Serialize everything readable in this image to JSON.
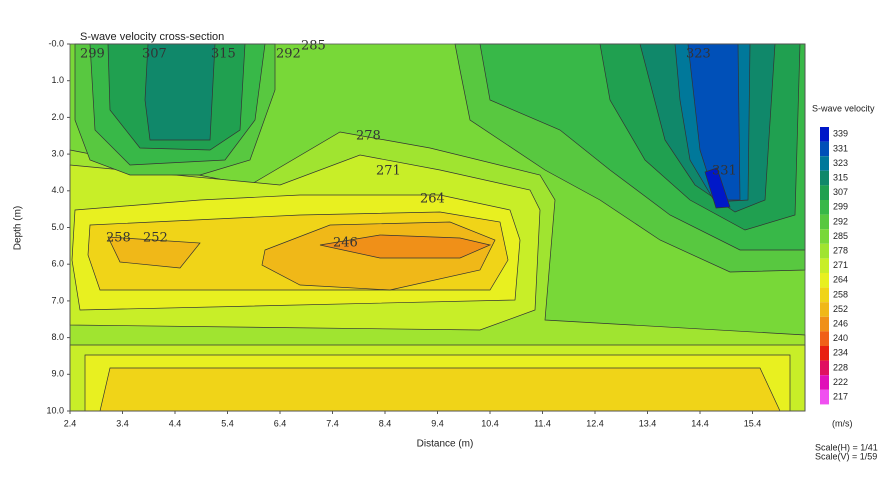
{
  "chart_data": {
    "type": "contour",
    "title": "S-wave velocity cross-section",
    "x_label": "Distance (m)",
    "y_label": "Depth (m)",
    "xlim": [
      2.4,
      16.4
    ],
    "xticks": [
      2.4,
      3.4,
      4.4,
      5.4,
      6.4,
      7.4,
      8.4,
      9.4,
      10.4,
      11.4,
      12.4,
      13.4,
      14.4,
      15.4
    ],
    "ylim": [
      0,
      10
    ],
    "y_inverted": true,
    "yticks": [
      {
        "value": 0,
        "label": "-0.0"
      },
      {
        "value": 1,
        "label": "1.0"
      },
      {
        "value": 2,
        "label": "2.0"
      },
      {
        "value": 3,
        "label": "3.0"
      },
      {
        "value": 4,
        "label": "4.0"
      },
      {
        "value": 5,
        "label": "5.0"
      },
      {
        "value": 6,
        "label": "6.0"
      },
      {
        "value": 7,
        "label": "7.0"
      },
      {
        "value": 8,
        "label": "8.0"
      },
      {
        "value": 9,
        "label": "9.0"
      },
      {
        "value": 10,
        "label": "10.0"
      }
    ],
    "grid": false,
    "colorbar": {
      "title": "S-wave velocity",
      "unit_label": "(m/s)",
      "levels": [
        339,
        331,
        323,
        315,
        307,
        299,
        292,
        285,
        278,
        271,
        264,
        258,
        252,
        246,
        240,
        234,
        228,
        222,
        217
      ],
      "colors": [
        "#0018c8",
        "#0050b8",
        "#00789a",
        "#10886a",
        "#20a050",
        "#38b848",
        "#58c840",
        "#78d838",
        "#a0e430",
        "#c8ee28",
        "#e8f020",
        "#f0d418",
        "#f0b818",
        "#f09018",
        "#f06018",
        "#e82010",
        "#e01060",
        "#e010b8",
        "#f050f0"
      ]
    },
    "contour_labels": [
      299,
      307,
      315,
      292,
      285,
      323,
      278,
      271,
      264,
      258,
      252,
      246,
      331
    ],
    "scale_h": "Scale(H) = 1/41",
    "scale_v": "Scale(V) = 1/59"
  }
}
